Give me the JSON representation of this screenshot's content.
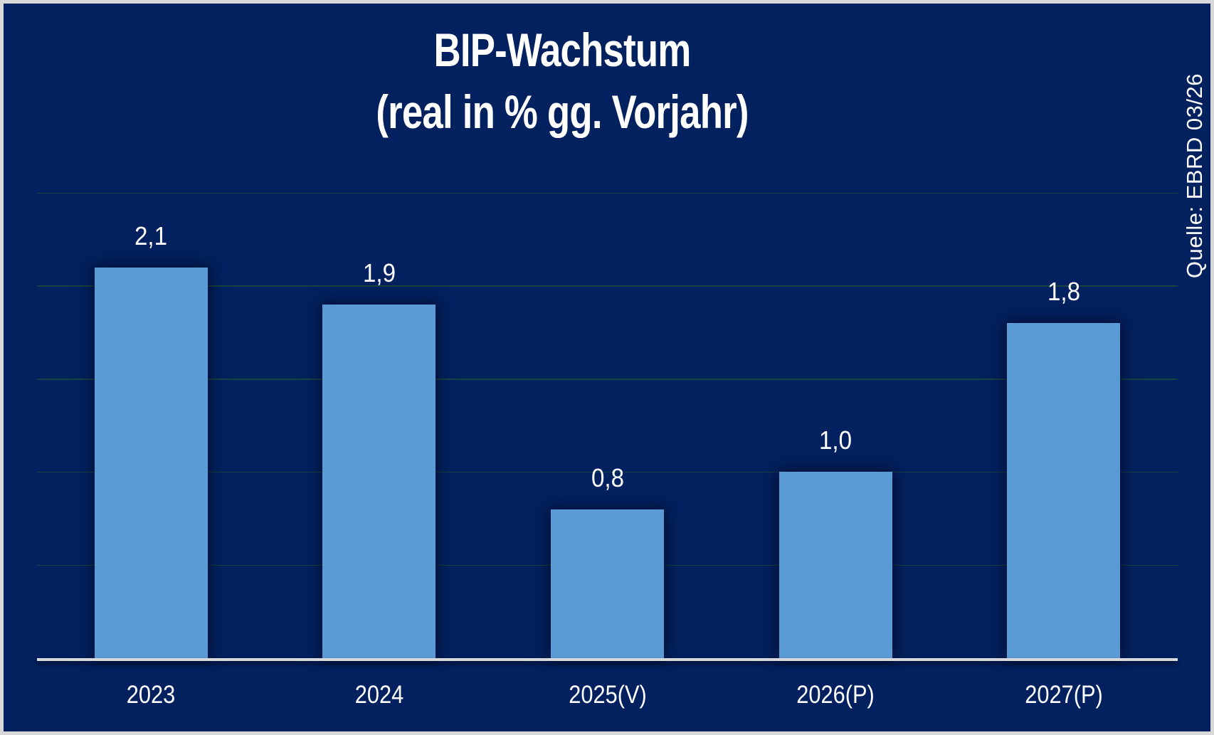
{
  "chart_data": {
    "type": "bar",
    "title_line1": "BIP-Wachstum",
    "title_line2": "(real in % gg. Vorjahr)",
    "source": "Quelle: EBRD 03/26",
    "categories": [
      "2023",
      "2024",
      "2025(V)",
      "2026(P)",
      "2027(P)"
    ],
    "values": [
      2.1,
      1.9,
      0.8,
      1.0,
      1.8
    ],
    "value_labels": [
      "2,1",
      "1,9",
      "0,8",
      "1,0",
      "1,8"
    ],
    "ylabel": "",
    "xlabel": "",
    "ylim": [
      0,
      2.5
    ],
    "gridline_step": 0.5,
    "grid_on": true,
    "legend": "none",
    "colors": {
      "background": "#02215e",
      "bar": "#5b9bd5",
      "axis_line": "#d9d9d9",
      "gridline": "#174a3c",
      "text": "#ffffff",
      "frame_border": "#d8d8d8"
    }
  }
}
